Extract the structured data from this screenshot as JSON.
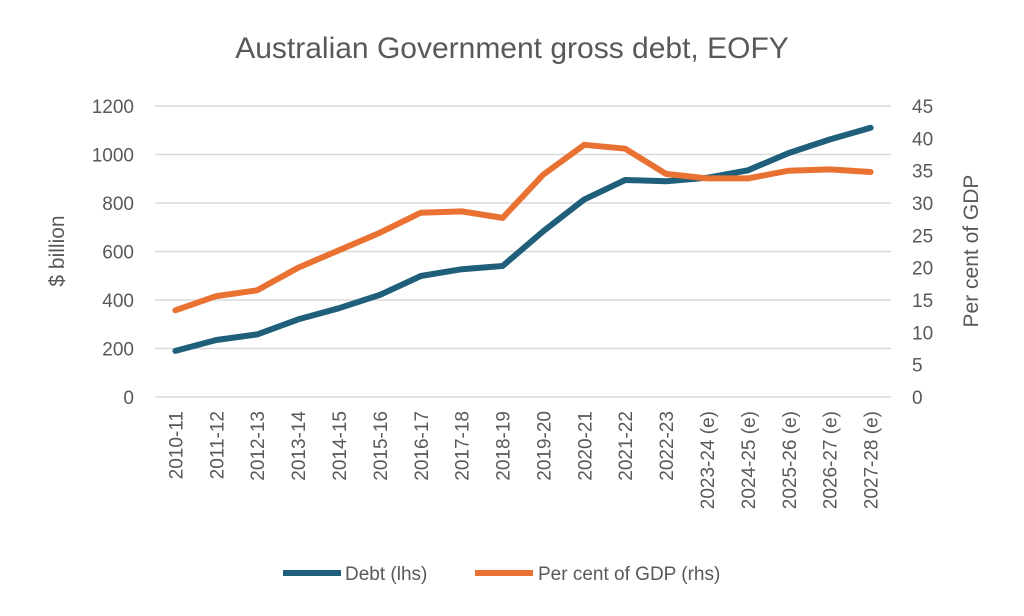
{
  "chart_data": {
    "type": "line",
    "title": "Australian Government gross debt, EOFY",
    "ylabel_left": "$ billion",
    "ylabel_right": "Per cent of GDP",
    "ylim_left": [
      0,
      1200
    ],
    "yticks_left": [
      "0",
      "200",
      "400",
      "600",
      "800",
      "1000",
      "1200"
    ],
    "ylim_right": [
      0,
      45
    ],
    "yticks_right": [
      "0",
      "5",
      "10",
      "15",
      "20",
      "25",
      "30",
      "35",
      "40",
      "45"
    ],
    "categories": [
      "2010-11",
      "2011-12",
      "2012-13",
      "2013-14",
      "2014-15",
      "2015-16",
      "2016-17",
      "2017-18",
      "2018-19",
      "2019-20",
      "2020-21",
      "2021-22",
      "2022-23",
      "2023-24 (e)",
      "2024-25 (e)",
      "2025-26 (e)",
      "2026-27 (e)",
      "2027-28 (e)"
    ],
    "series": [
      {
        "name": "Debt (lhs)",
        "axis": "left",
        "color": "#1f5f7a",
        "values": [
          190,
          235,
          258,
          320,
          366,
          421,
          499,
          527,
          540,
          684,
          815,
          895,
          890,
          904,
          935,
          1006,
          1062,
          1110
        ]
      },
      {
        "name": "Per cent of GDP (rhs)",
        "axis": "right",
        "color": "#e97132",
        "values": [
          13.4,
          15.6,
          16.5,
          20.0,
          22.7,
          25.4,
          28.5,
          28.7,
          27.7,
          34.4,
          39.0,
          38.4,
          34.5,
          33.8,
          33.8,
          35.0,
          35.2,
          34.8
        ]
      }
    ],
    "grid": true,
    "legend_position": "bottom"
  }
}
